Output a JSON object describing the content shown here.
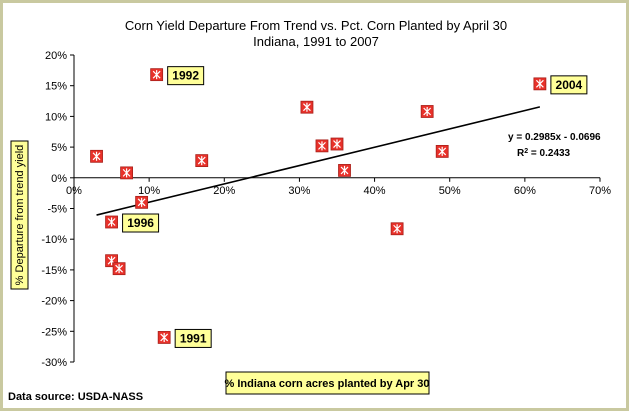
{
  "chart_data": {
    "type": "scatter",
    "title": "Corn Yield Departure From Trend vs. Pct. Corn Planted by April 30",
    "subtitle": "Indiana, 1991 to 2007",
    "xlabel": "% Indiana corn acres planted by Apr 30",
    "ylabel": "% Departure from trend yield",
    "source": "Data source: USDA-NASS",
    "xlim": [
      0,
      0.7
    ],
    "ylim": [
      -0.3,
      0.2
    ],
    "x_ticks": [
      0,
      0.1,
      0.2,
      0.3,
      0.4,
      0.5,
      0.6,
      0.7
    ],
    "x_tick_labels": [
      "0%",
      "10%",
      "20%",
      "30%",
      "40%",
      "50%",
      "60%",
      "70%"
    ],
    "y_ticks": [
      0.2,
      0.15,
      0.1,
      0.05,
      0.0,
      -0.05,
      -0.1,
      -0.15,
      -0.2,
      -0.25,
      -0.3
    ],
    "y_tick_labels": [
      "20%",
      "15%",
      "10%",
      "5%",
      "0%",
      "-5%",
      "-10%",
      "-15%",
      "-20%",
      "-25%",
      "-30%"
    ],
    "grid": false,
    "marker_color": "#e8312a",
    "trendline": {
      "slope": 0.2985,
      "intercept": -0.0696,
      "x_range": [
        0.03,
        0.62
      ],
      "equation": "y = 0.2985x - 0.0696",
      "r2_prefix": "R",
      "r2_sup": "2",
      "r2_suffix": " = 0.2433"
    },
    "points": [
      {
        "x": 0.03,
        "y": 0.035
      },
      {
        "x": 0.05,
        "y": -0.072,
        "label": "1996"
      },
      {
        "x": 0.05,
        "y": -0.135
      },
      {
        "x": 0.06,
        "y": -0.148
      },
      {
        "x": 0.07,
        "y": 0.008
      },
      {
        "x": 0.09,
        "y": -0.04
      },
      {
        "x": 0.11,
        "y": 0.168,
        "label": "1992"
      },
      {
        "x": 0.12,
        "y": -0.26,
        "label": "1991"
      },
      {
        "x": 0.17,
        "y": 0.028
      },
      {
        "x": 0.31,
        "y": 0.115
      },
      {
        "x": 0.33,
        "y": 0.052
      },
      {
        "x": 0.35,
        "y": 0.055
      },
      {
        "x": 0.36,
        "y": 0.012
      },
      {
        "x": 0.43,
        "y": -0.083
      },
      {
        "x": 0.47,
        "y": 0.108
      },
      {
        "x": 0.49,
        "y": 0.043
      },
      {
        "x": 0.62,
        "y": 0.153,
        "label": "2004"
      }
    ]
  },
  "colors": {
    "background": "#ffffff",
    "border": "#c9c9a0",
    "label_box_fill": "#ffff99",
    "axis": "#000000"
  }
}
